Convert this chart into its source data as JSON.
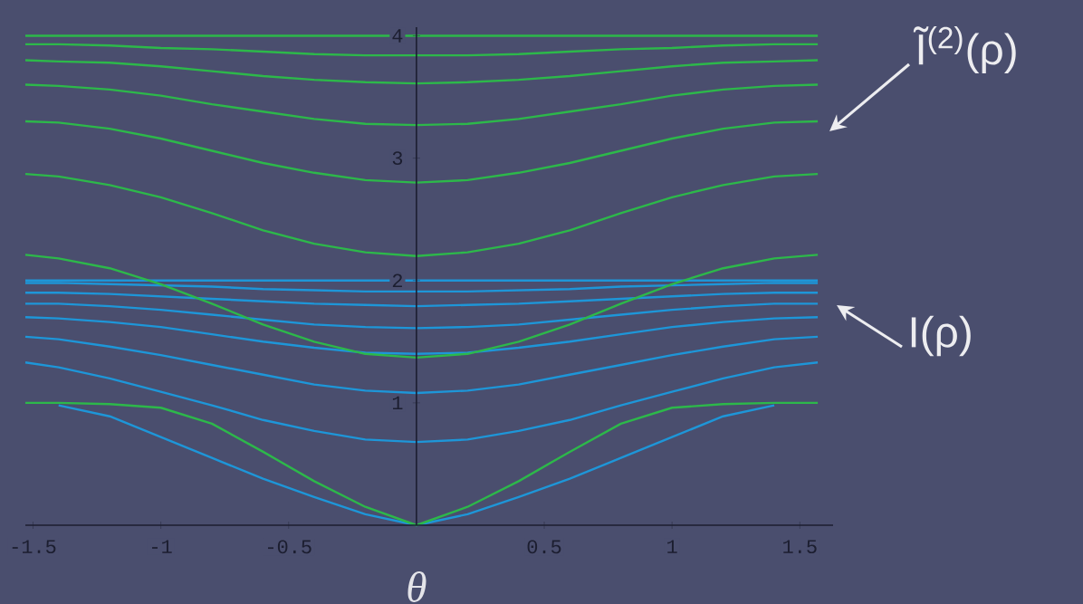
{
  "chart_data": {
    "type": "line",
    "xlabel": "θ",
    "x": [
      -1.53,
      -1.4,
      -1.2,
      -1,
      -0.8,
      -0.6,
      -0.4,
      -0.2,
      0,
      0.2,
      0.4,
      0.6,
      0.8,
      1,
      1.2,
      1.4,
      1.57
    ],
    "series": [
      {
        "color": "#1e96d8",
        "values": [
          2.0,
          2.0,
          2.0,
          2.0,
          2.0,
          2.0,
          2.0,
          2.0,
          2.0,
          2.0,
          2.0,
          2.0,
          2.0,
          2.0,
          2.0,
          2.0,
          2.0
        ]
      },
      {
        "color": "#1e96d8",
        "values": [
          1.98,
          1.98,
          1.97,
          1.96,
          1.95,
          1.93,
          1.92,
          1.91,
          1.91,
          1.91,
          1.92,
          1.93,
          1.95,
          1.96,
          1.97,
          1.98,
          1.98
        ]
      },
      {
        "color": "#1e96d8",
        "values": [
          1.9,
          1.9,
          1.89,
          1.87,
          1.85,
          1.83,
          1.81,
          1.8,
          1.79,
          1.8,
          1.81,
          1.83,
          1.85,
          1.87,
          1.89,
          1.9,
          1.9
        ]
      },
      {
        "color": "#1e96d8",
        "values": [
          1.81,
          1.81,
          1.79,
          1.76,
          1.72,
          1.68,
          1.64,
          1.62,
          1.61,
          1.62,
          1.64,
          1.68,
          1.72,
          1.76,
          1.79,
          1.81,
          1.81
        ]
      },
      {
        "color": "#1e96d8",
        "values": [
          1.7,
          1.69,
          1.66,
          1.62,
          1.56,
          1.5,
          1.45,
          1.41,
          1.4,
          1.41,
          1.45,
          1.5,
          1.56,
          1.62,
          1.66,
          1.69,
          1.7
        ]
      },
      {
        "color": "#1e96d8",
        "values": [
          1.54,
          1.52,
          1.46,
          1.39,
          1.31,
          1.23,
          1.15,
          1.1,
          1.08,
          1.1,
          1.15,
          1.23,
          1.31,
          1.39,
          1.46,
          1.52,
          1.54
        ]
      },
      {
        "color": "#1e96d8",
        "values": [
          1.33,
          1.29,
          1.2,
          1.09,
          0.98,
          0.86,
          0.77,
          0.7,
          0.68,
          0.7,
          0.77,
          0.86,
          0.98,
          1.09,
          1.2,
          1.29,
          1.33
        ]
      },
      {
        "color": "#1e96d8",
        "values": [
          null,
          0.98,
          0.89,
          0.72,
          0.55,
          0.38,
          0.23,
          0.09,
          0,
          0.09,
          0.23,
          0.38,
          0.55,
          0.72,
          0.89,
          0.98,
          null
        ]
      },
      {
        "color": "#2db84a",
        "values": [
          4.0,
          4.0,
          4.0,
          4.0,
          4.0,
          4.0,
          4.0,
          4.0,
          4.0,
          4.0,
          4.0,
          4.0,
          4.0,
          4.0,
          4.0,
          4.0,
          4.0
        ]
      },
      {
        "color": "#2db84a",
        "values": [
          3.93,
          3.93,
          3.92,
          3.9,
          3.89,
          3.87,
          3.85,
          3.84,
          3.84,
          3.84,
          3.85,
          3.87,
          3.89,
          3.9,
          3.92,
          3.93,
          3.93
        ]
      },
      {
        "color": "#2db84a",
        "values": [
          3.8,
          3.79,
          3.78,
          3.75,
          3.71,
          3.67,
          3.64,
          3.62,
          3.61,
          3.62,
          3.64,
          3.67,
          3.71,
          3.75,
          3.78,
          3.79,
          3.8
        ]
      },
      {
        "color": "#2db84a",
        "values": [
          3.6,
          3.59,
          3.56,
          3.51,
          3.44,
          3.38,
          3.32,
          3.28,
          3.27,
          3.28,
          3.32,
          3.38,
          3.44,
          3.51,
          3.56,
          3.59,
          3.6
        ]
      },
      {
        "color": "#2db84a",
        "values": [
          3.3,
          3.29,
          3.24,
          3.16,
          3.06,
          2.96,
          2.88,
          2.82,
          2.8,
          2.82,
          2.88,
          2.96,
          3.06,
          3.16,
          3.24,
          3.29,
          3.3
        ]
      },
      {
        "color": "#2db84a",
        "values": [
          2.87,
          2.85,
          2.78,
          2.68,
          2.55,
          2.41,
          2.3,
          2.23,
          2.2,
          2.23,
          2.3,
          2.41,
          2.55,
          2.68,
          2.78,
          2.85,
          2.87
        ]
      },
      {
        "color": "#2db84a",
        "values": [
          2.21,
          2.18,
          2.1,
          1.97,
          1.81,
          1.64,
          1.5,
          1.4,
          1.37,
          1.4,
          1.5,
          1.64,
          1.81,
          1.97,
          2.1,
          2.18,
          2.21
        ]
      },
      {
        "color": "#2db84a",
        "values": [
          1.0,
          1.0,
          0.99,
          0.96,
          0.83,
          0.6,
          0.36,
          0.15,
          0,
          0.15,
          0.36,
          0.6,
          0.83,
          0.96,
          0.99,
          1.0,
          1.0
        ]
      }
    ],
    "xlim": [
      -1.53,
      1.63
    ],
    "ylim": [
      0,
      4.07
    ],
    "xticks": [
      -1.5,
      -1,
      -0.5,
      0.5,
      1,
      1.5
    ],
    "yticks": [
      1,
      2,
      3,
      4
    ],
    "annotations": [
      "Ĩ$^{(2)}$(ρ)",
      "I(ρ)"
    ],
    "line_style": "solid"
  }
}
